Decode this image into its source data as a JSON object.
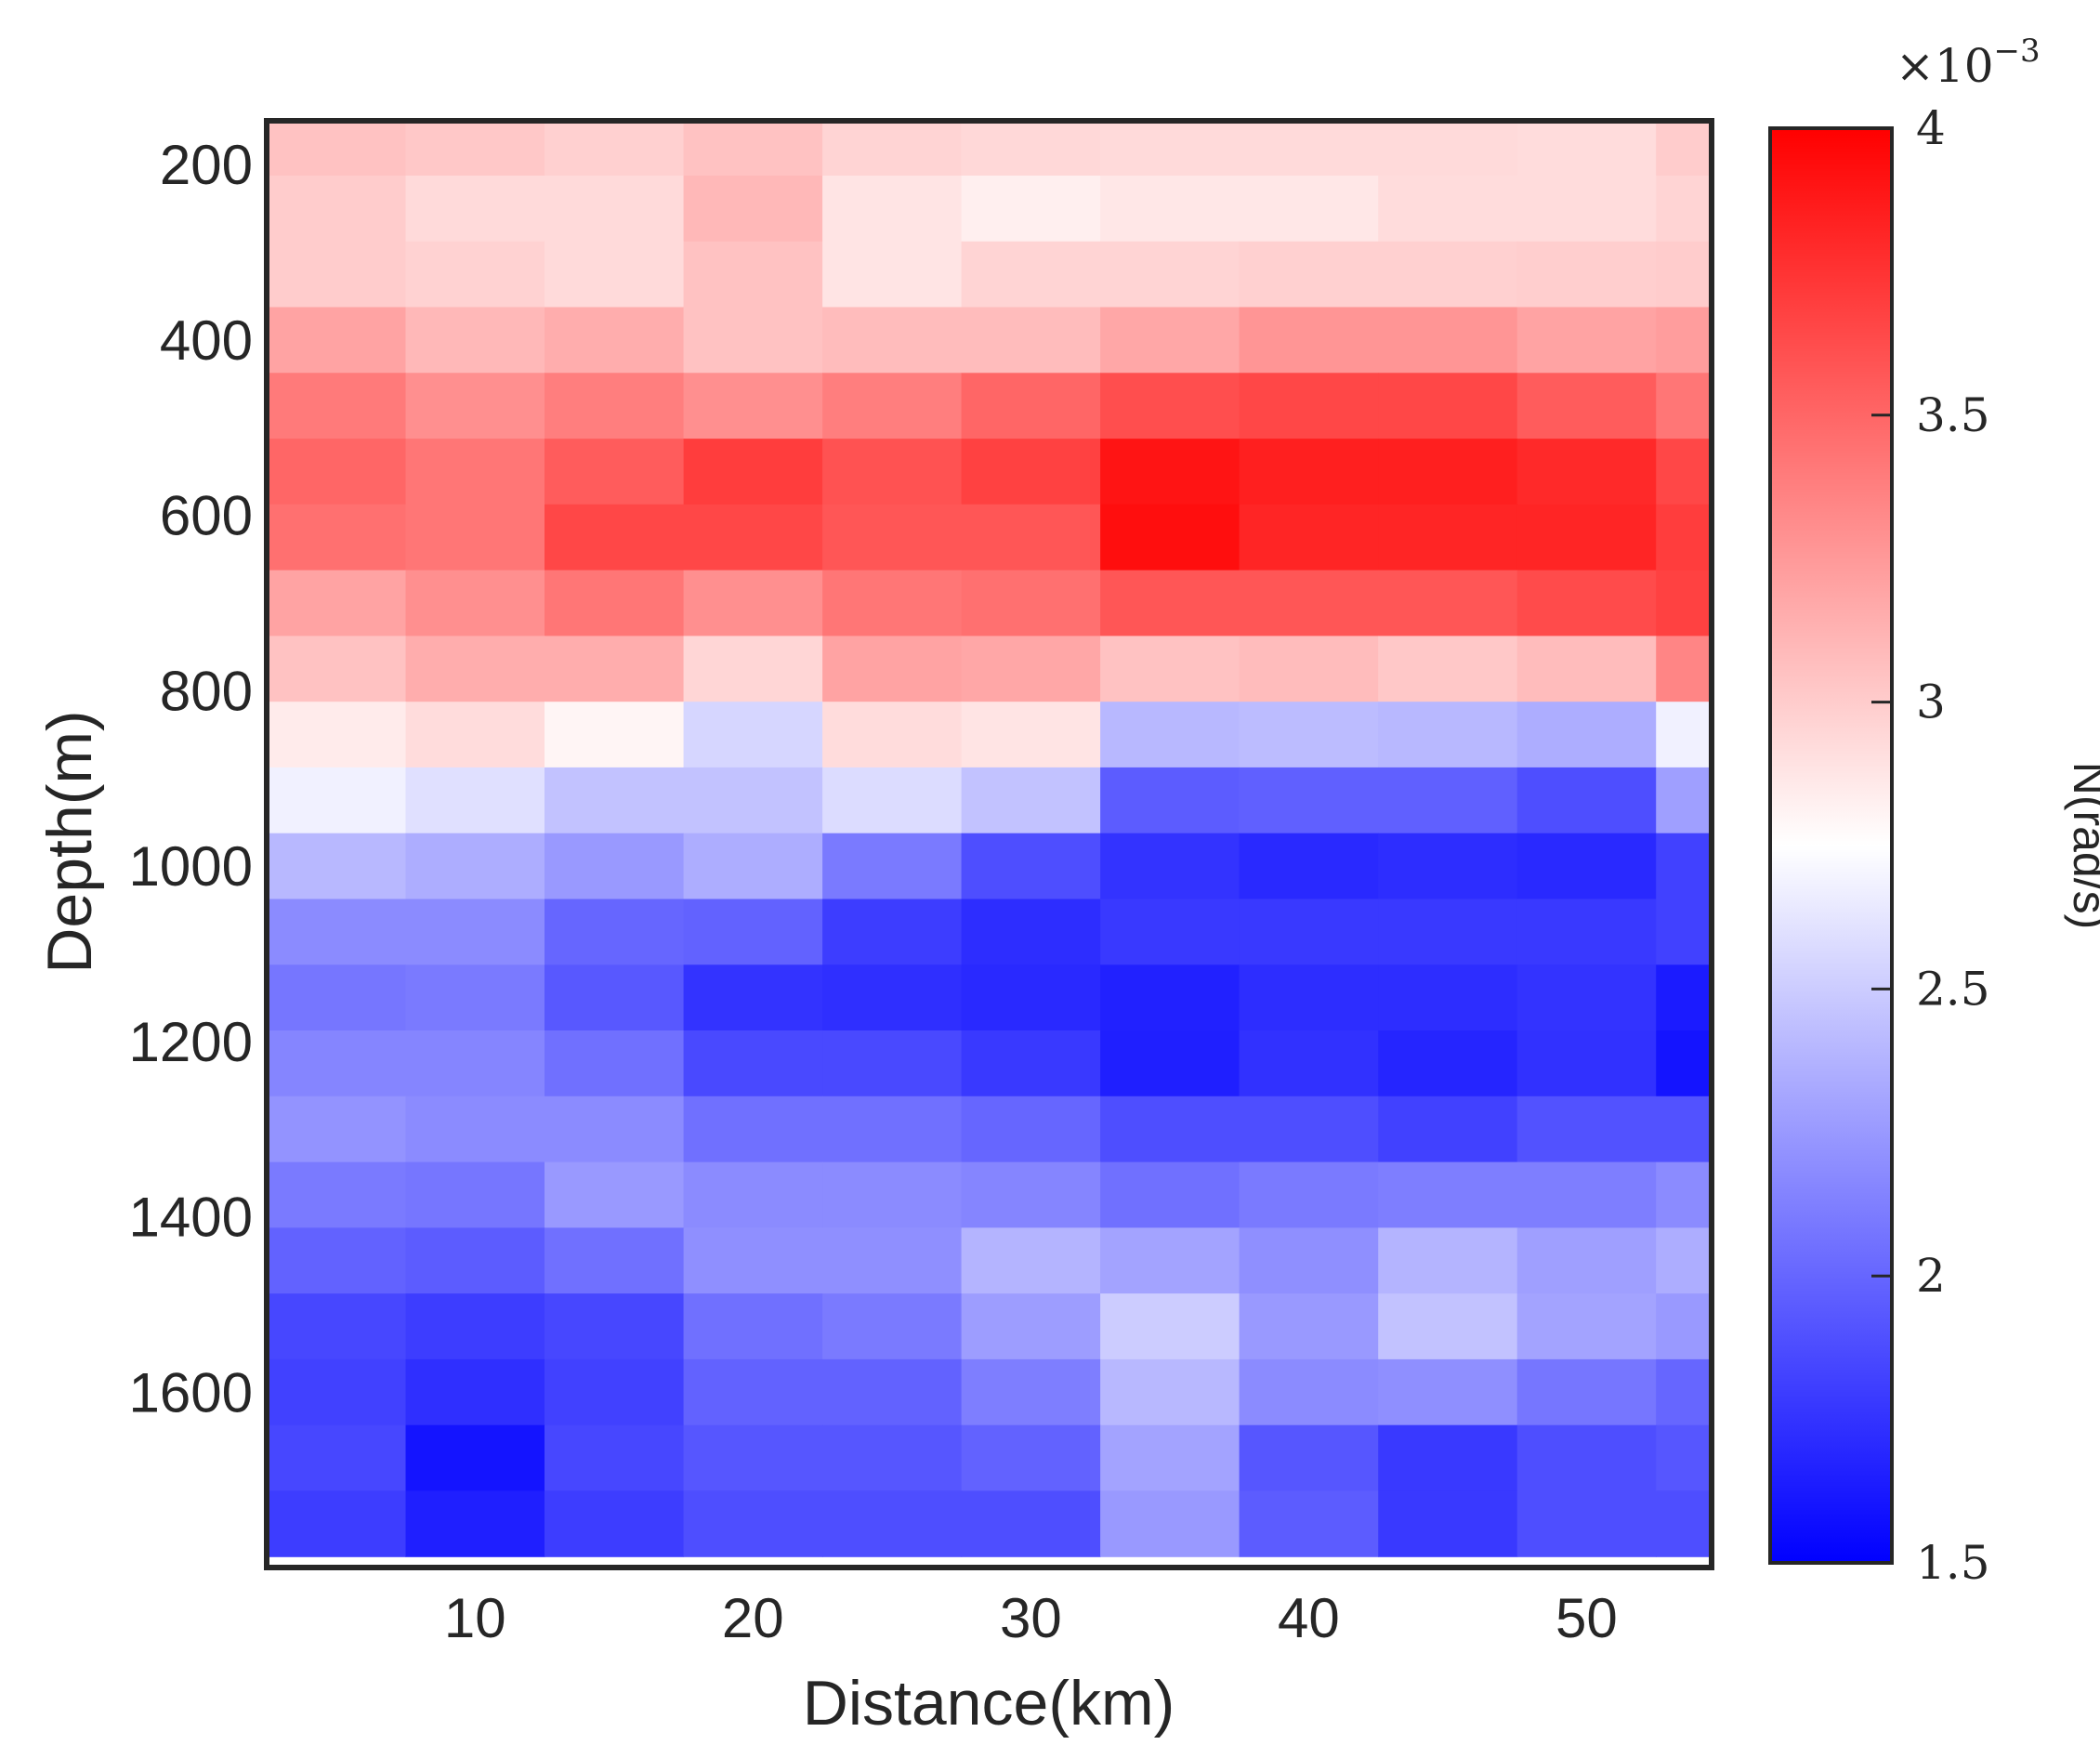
{
  "chart_data": {
    "type": "heatmap",
    "title": "",
    "xlabel": "Distance(km)",
    "ylabel": "Depth(m)",
    "colorbar_label": "N(rad/s)",
    "colorbar_exponent_base": "×10",
    "colorbar_exponent_power": "−3",
    "xlim": [
      2.5,
      54.5
    ],
    "ylim": [
      1800,
      150
    ],
    "clim": [
      1.5,
      4.0
    ],
    "x_ticks": [
      10,
      20,
      30,
      40,
      50
    ],
    "y_ticks": [
      200,
      400,
      600,
      800,
      1000,
      1200,
      1400,
      1600
    ],
    "colorbar_ticks": [
      1.5,
      2,
      2.5,
      3,
      3.5,
      4
    ],
    "colorbar_tick_labels": [
      "1.5",
      "2",
      "2.5",
      "3",
      "3.5",
      "4"
    ],
    "x_tick_labels": [
      "10",
      "20",
      "30",
      "40",
      "50"
    ],
    "y_tick_labels": [
      "200",
      "400",
      "600",
      "800",
      "1000",
      "1200",
      "1400",
      "1600"
    ],
    "colormap": [
      "#0000ff",
      "#ffffff",
      "#ff0000"
    ],
    "colormap_mid": 2.75,
    "x_centers": [
      5,
      10,
      15,
      20,
      25,
      30,
      35,
      40,
      45,
      50,
      55
    ],
    "y_centers": [
      175,
      250,
      325,
      400,
      475,
      550,
      625,
      700,
      775,
      850,
      925,
      1000,
      1075,
      1150,
      1225,
      1300,
      1375,
      1450,
      1525,
      1600,
      1675,
      1750
    ],
    "values": [
      [
        3.05,
        3.02,
        2.98,
        3.05,
        2.96,
        2.94,
        2.93,
        2.93,
        2.93,
        2.92,
        3.0
      ],
      [
        3.0,
        2.93,
        2.93,
        3.1,
        2.88,
        2.83,
        2.87,
        2.87,
        2.92,
        2.92,
        2.96
      ],
      [
        3.0,
        2.97,
        2.93,
        3.05,
        2.88,
        2.96,
        2.96,
        2.98,
        2.98,
        2.99,
        3.0
      ],
      [
        3.2,
        3.1,
        3.15,
        3.05,
        3.08,
        3.08,
        3.18,
        3.27,
        3.27,
        3.2,
        3.23
      ],
      [
        3.4,
        3.3,
        3.38,
        3.3,
        3.38,
        3.5,
        3.62,
        3.65,
        3.65,
        3.55,
        3.42
      ],
      [
        3.5,
        3.42,
        3.55,
        3.7,
        3.6,
        3.68,
        3.9,
        3.85,
        3.85,
        3.8,
        3.65
      ],
      [
        3.45,
        3.42,
        3.65,
        3.65,
        3.58,
        3.58,
        3.93,
        3.82,
        3.82,
        3.82,
        3.7
      ],
      [
        3.2,
        3.3,
        3.42,
        3.3,
        3.42,
        3.45,
        3.58,
        3.58,
        3.58,
        3.63,
        3.68
      ],
      [
        3.05,
        3.15,
        3.15,
        2.95,
        3.2,
        3.18,
        3.05,
        3.08,
        3.02,
        3.08,
        3.35
      ],
      [
        2.85,
        2.92,
        2.8,
        2.55,
        2.92,
        2.88,
        2.4,
        2.42,
        2.4,
        2.35,
        2.68
      ],
      [
        2.68,
        2.6,
        2.45,
        2.45,
        2.58,
        2.45,
        1.95,
        1.97,
        1.97,
        1.88,
        2.28
      ],
      [
        2.4,
        2.35,
        2.25,
        2.35,
        2.1,
        1.88,
        1.75,
        1.7,
        1.72,
        1.7,
        1.82
      ],
      [
        2.18,
        2.18,
        2.0,
        1.98,
        1.8,
        1.72,
        1.78,
        1.78,
        1.78,
        1.78,
        1.82
      ],
      [
        2.08,
        2.1,
        1.93,
        1.75,
        1.73,
        1.7,
        1.66,
        1.72,
        1.72,
        1.75,
        1.63
      ],
      [
        2.15,
        2.15,
        2.05,
        1.86,
        1.86,
        1.78,
        1.65,
        1.74,
        1.68,
        1.74,
        1.6
      ],
      [
        2.22,
        2.18,
        2.18,
        2.05,
        2.05,
        2.0,
        1.88,
        1.88,
        1.82,
        1.9,
        1.9
      ],
      [
        2.1,
        2.08,
        2.25,
        2.18,
        2.18,
        2.15,
        2.05,
        2.1,
        2.12,
        2.12,
        2.18
      ],
      [
        1.98,
        1.95,
        2.05,
        2.2,
        2.2,
        2.38,
        2.3,
        2.2,
        2.38,
        2.28,
        2.35
      ],
      [
        1.85,
        1.8,
        1.85,
        2.05,
        2.1,
        2.27,
        2.5,
        2.25,
        2.45,
        2.3,
        2.25
      ],
      [
        1.82,
        1.73,
        1.82,
        1.98,
        1.98,
        2.12,
        2.4,
        2.18,
        2.2,
        2.08,
        2.0
      ],
      [
        1.85,
        1.6,
        1.85,
        1.92,
        1.92,
        1.98,
        2.3,
        1.92,
        1.78,
        1.88,
        1.92
      ],
      [
        1.8,
        1.65,
        1.8,
        1.88,
        1.88,
        1.88,
        2.25,
        1.95,
        1.78,
        1.88,
        1.88
      ]
    ]
  }
}
